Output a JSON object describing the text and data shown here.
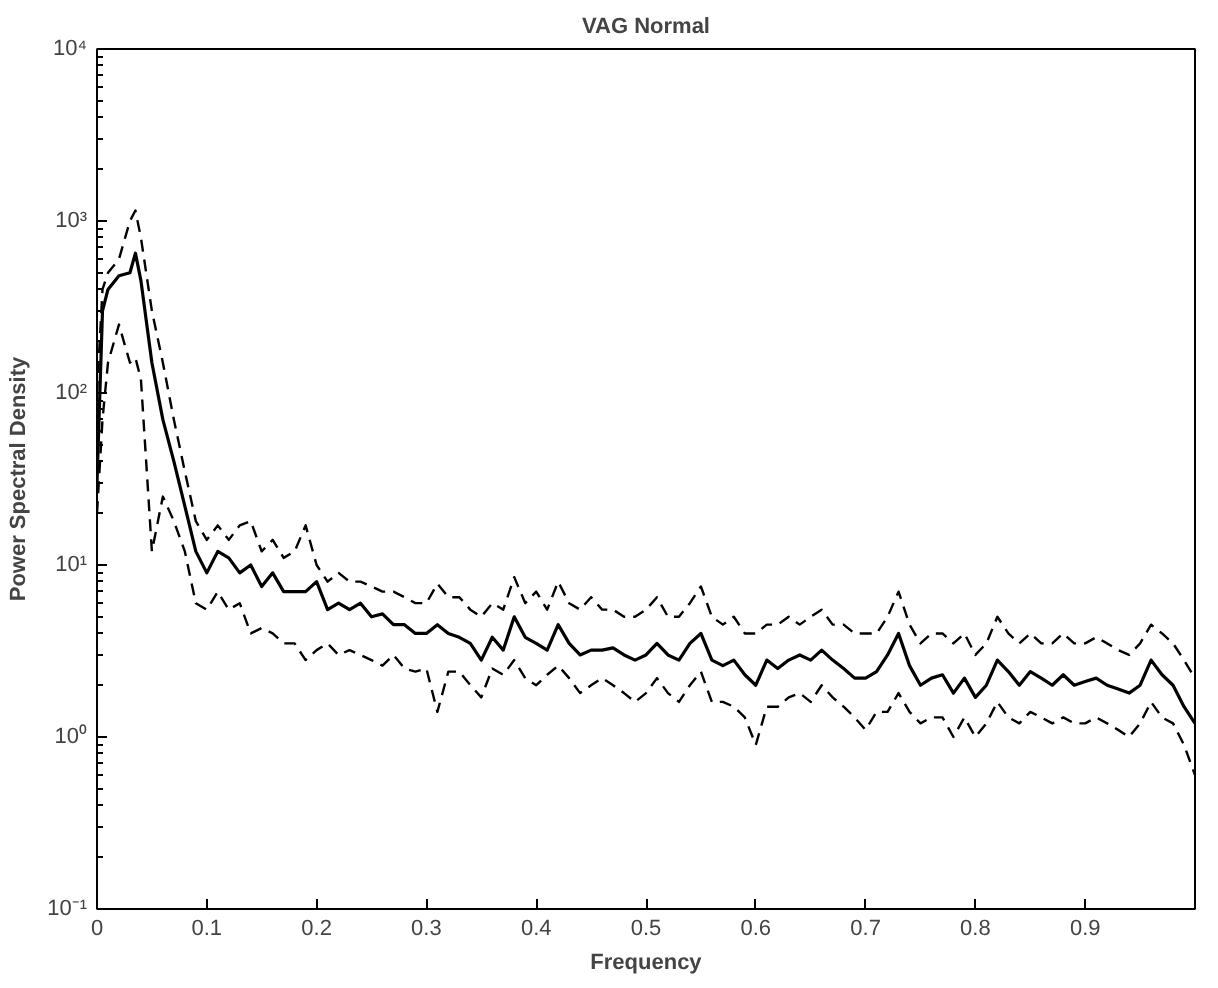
{
  "chart_data": {
    "type": "line",
    "title": "VAG Normal",
    "xlabel": "Frequency",
    "ylabel": "Power Spectral Density",
    "log": "y",
    "xlim": [
      0,
      1
    ],
    "xticks": [
      0,
      0.1,
      0.2,
      0.3,
      0.4,
      0.5,
      0.6,
      0.7,
      0.8,
      0.9
    ],
    "ylim": [
      0.1,
      10000
    ],
    "yticks": [
      {
        "value": 0.1,
        "label": "10⁻¹"
      },
      {
        "value": 1,
        "label": "10⁰"
      },
      {
        "value": 10,
        "label": "10¹"
      },
      {
        "value": 100,
        "label": "10²"
      },
      {
        "value": 1000,
        "label": "10³"
      },
      {
        "value": 10000,
        "label": "10⁴"
      }
    ],
    "grid": false,
    "marker": "none",
    "x": [
      0,
      0.005,
      0.01,
      0.02,
      0.03,
      0.035,
      0.04,
      0.05,
      0.06,
      0.07,
      0.08,
      0.09,
      0.1,
      0.11,
      0.12,
      0.13,
      0.14,
      0.15,
      0.16,
      0.17,
      0.18,
      0.19,
      0.2,
      0.21,
      0.22,
      0.23,
      0.24,
      0.25,
      0.26,
      0.27,
      0.28,
      0.29,
      0.3,
      0.31,
      0.32,
      0.33,
      0.34,
      0.35,
      0.36,
      0.37,
      0.38,
      0.39,
      0.4,
      0.41,
      0.42,
      0.43,
      0.44,
      0.45,
      0.46,
      0.47,
      0.48,
      0.49,
      0.5,
      0.51,
      0.52,
      0.53,
      0.54,
      0.55,
      0.56,
      0.57,
      0.58,
      0.59,
      0.6,
      0.61,
      0.62,
      0.63,
      0.64,
      0.65,
      0.66,
      0.67,
      0.68,
      0.69,
      0.7,
      0.71,
      0.72,
      0.73,
      0.74,
      0.75,
      0.76,
      0.77,
      0.78,
      0.79,
      0.8,
      0.81,
      0.82,
      0.83,
      0.84,
      0.85,
      0.86,
      0.87,
      0.88,
      0.89,
      0.9,
      0.91,
      0.92,
      0.93,
      0.94,
      0.95,
      0.96,
      0.97,
      0.98,
      0.99,
      1.0
    ],
    "series": [
      {
        "color": "#000000",
        "line_style": "solid",
        "values": [
          30,
          300,
          400,
          480,
          500,
          650,
          450,
          150,
          70,
          40,
          22,
          12,
          9,
          12,
          11,
          9,
          10,
          7.5,
          9,
          7,
          7,
          7,
          8,
          5.5,
          6,
          5.5,
          6,
          5,
          5.2,
          4.5,
          4.5,
          4,
          4,
          4.5,
          4,
          3.8,
          3.5,
          2.8,
          3.8,
          3.2,
          5,
          3.8,
          3.5,
          3.2,
          4.5,
          3.5,
          3,
          3.2,
          3.2,
          3.3,
          3,
          2.8,
          3,
          3.5,
          3,
          2.8,
          3.5,
          4,
          2.8,
          2.6,
          2.8,
          2.3,
          2,
          2.8,
          2.5,
          2.8,
          3,
          2.8,
          3.2,
          2.8,
          2.5,
          2.2,
          2.2,
          2.4,
          3,
          4,
          2.6,
          2,
          2.2,
          2.3,
          1.8,
          2.2,
          1.7,
          2,
          2.8,
          2.4,
          2,
          2.4,
          2.2,
          2,
          2.3,
          2,
          2.1,
          2.2,
          2,
          1.9,
          1.8,
          2,
          2.8,
          2.3,
          2,
          1.5,
          1.2
        ]
      },
      {
        "color": "#000000",
        "line_style": "dashed",
        "values": [
          100,
          400,
          500,
          600,
          1000,
          1150,
          800,
          300,
          150,
          70,
          35,
          18,
          14,
          17,
          14,
          17,
          18,
          12,
          14,
          11,
          12,
          17,
          10,
          8,
          9,
          8,
          8,
          7.5,
          7,
          7,
          6.5,
          6,
          6,
          7.8,
          6.5,
          6.5,
          5.5,
          5,
          6,
          5.5,
          8.5,
          6,
          7,
          5.5,
          8,
          6,
          5.5,
          6.5,
          5.5,
          5.5,
          5,
          5,
          5.5,
          6.5,
          5,
          5,
          6,
          7.5,
          5,
          4.5,
          5,
          4,
          4,
          4.5,
          4.5,
          5,
          4.5,
          5,
          5.5,
          4.5,
          4.5,
          4,
          4,
          4,
          5,
          7,
          4.5,
          3.5,
          4,
          4,
          3.5,
          4,
          3,
          3.5,
          5,
          4,
          3.5,
          4,
          3.5,
          3.5,
          4,
          3.5,
          3.5,
          3.8,
          3.5,
          3.2,
          3,
          3.5,
          4.5,
          4,
          3.5,
          2.8,
          2.2
        ]
      },
      {
        "color": "#000000",
        "line_style": "dashed",
        "values": [
          20,
          70,
          150,
          250,
          150,
          160,
          120,
          12,
          25,
          18,
          12,
          6,
          5.5,
          7,
          5.5,
          6,
          4,
          4.3,
          4,
          3.5,
          3.5,
          2.8,
          3.2,
          3.5,
          3,
          3.2,
          3,
          2.8,
          2.6,
          3,
          2.5,
          2.4,
          2.5,
          1.4,
          2.4,
          2.4,
          2,
          1.7,
          2.5,
          2.3,
          2.8,
          2.2,
          2,
          2.3,
          2.6,
          2.2,
          1.8,
          2,
          2.2,
          2,
          1.8,
          1.6,
          1.8,
          2.2,
          1.8,
          1.6,
          2,
          2.4,
          1.6,
          1.6,
          1.5,
          1.3,
          0.9,
          1.5,
          1.5,
          1.7,
          1.8,
          1.6,
          2,
          1.7,
          1.5,
          1.3,
          1.1,
          1.4,
          1.4,
          1.8,
          1.4,
          1.2,
          1.3,
          1.3,
          1,
          1.3,
          1,
          1.2,
          1.6,
          1.3,
          1.2,
          1.4,
          1.3,
          1.2,
          1.3,
          1.2,
          1.2,
          1.3,
          1.2,
          1.1,
          1,
          1.2,
          1.6,
          1.3,
          1.2,
          0.9,
          0.6
        ]
      }
    ]
  }
}
